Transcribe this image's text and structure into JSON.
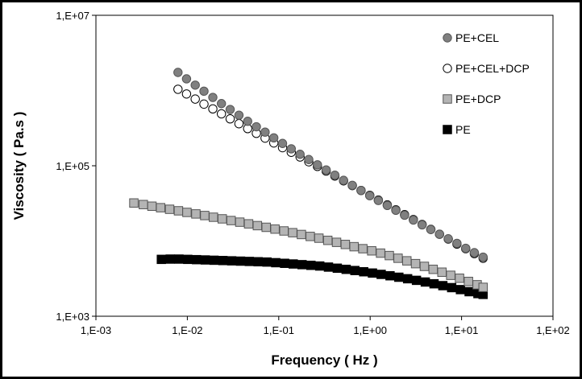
{
  "chart_data": {
    "type": "scatter",
    "xscale": "log",
    "yscale": "log",
    "xlabel": "Frequency  ( Hz )",
    "ylabel": "Viscosity  ( Pa.s )",
    "xlim": [
      0.001,
      100
    ],
    "ylim": [
      1000,
      10000000
    ],
    "grid": false,
    "legend_position": "top-right",
    "x_ticks": [
      {
        "value": 0.001,
        "label": "1,E-03"
      },
      {
        "value": 0.01,
        "label": "1,E-02"
      },
      {
        "value": 0.1,
        "label": "1,E-01"
      },
      {
        "value": 1,
        "label": "1,E+00"
      },
      {
        "value": 10,
        "label": "1,E+01"
      },
      {
        "value": 100,
        "label": "1,E+02"
      }
    ],
    "y_ticks": [
      {
        "value": 1000,
        "label": "1,E+03"
      },
      {
        "value": 100000,
        "label": "1,E+05"
      },
      {
        "value": 10000000,
        "label": "1,E+07"
      }
    ],
    "series": [
      {
        "name": "PE+CEL",
        "marker": "circle",
        "fill": "#808080",
        "stroke": "#555555",
        "points": [
          [
            0.0079,
            1740000
          ],
          [
            0.0098,
            1430000
          ],
          [
            0.0122,
            1180000
          ],
          [
            0.0152,
            980000
          ],
          [
            0.019,
            810000
          ],
          [
            0.0236,
            670000
          ],
          [
            0.0294,
            560000
          ],
          [
            0.0367,
            470000
          ],
          [
            0.0457,
            390000
          ],
          [
            0.0569,
            330000
          ],
          [
            0.0709,
            280000
          ],
          [
            0.0883,
            235000
          ],
          [
            0.11,
            198000
          ],
          [
            0.137,
            168000
          ],
          [
            0.171,
            142000
          ],
          [
            0.213,
            121000
          ],
          [
            0.265,
            103000
          ],
          [
            0.33,
            88000
          ],
          [
            0.411,
            75000
          ],
          [
            0.512,
            64000
          ],
          [
            0.638,
            55000
          ],
          [
            0.795,
            47000
          ],
          [
            0.99,
            40000
          ],
          [
            1.23,
            34500
          ],
          [
            1.54,
            29700
          ],
          [
            1.91,
            25600
          ],
          [
            2.38,
            22000
          ],
          [
            2.97,
            19000
          ],
          [
            3.7,
            16400
          ],
          [
            4.61,
            14200
          ],
          [
            5.74,
            12300
          ],
          [
            7.15,
            10700
          ],
          [
            8.9,
            9300
          ],
          [
            11.1,
            8000
          ],
          [
            13.8,
            7000
          ],
          [
            17.2,
            6100
          ]
        ]
      },
      {
        "name": "PE+CEL+DCP",
        "marker": "circle",
        "fill": "#ffffff",
        "stroke": "#000000",
        "points": [
          [
            0.0079,
            1040000
          ],
          [
            0.0098,
            900000
          ],
          [
            0.0122,
            770000
          ],
          [
            0.0152,
            660000
          ],
          [
            0.019,
            570000
          ],
          [
            0.0236,
            490000
          ],
          [
            0.0294,
            420000
          ],
          [
            0.0367,
            362000
          ],
          [
            0.0457,
            312000
          ],
          [
            0.0569,
            270000
          ],
          [
            0.0709,
            233000
          ],
          [
            0.0883,
            201000
          ],
          [
            0.11,
            174000
          ],
          [
            0.137,
            151000
          ],
          [
            0.171,
            131000
          ],
          [
            0.213,
            113000
          ],
          [
            0.265,
            98000
          ],
          [
            0.33,
            85000
          ],
          [
            0.411,
            73000
          ],
          [
            0.512,
            63000
          ],
          [
            0.638,
            54500
          ],
          [
            0.795,
            47000
          ],
          [
            0.99,
            40500
          ],
          [
            1.23,
            35000
          ],
          [
            1.54,
            30200
          ],
          [
            1.91,
            26000
          ],
          [
            2.38,
            22400
          ],
          [
            2.97,
            19300
          ],
          [
            3.7,
            16600
          ],
          [
            4.61,
            14300
          ],
          [
            5.74,
            12300
          ],
          [
            7.15,
            10600
          ],
          [
            8.9,
            9100
          ],
          [
            11.1,
            7900
          ],
          [
            13.8,
            6800
          ],
          [
            17.2,
            5900
          ]
        ]
      },
      {
        "name": "PE+DCP",
        "marker": "square",
        "fill": "#b4b4b4",
        "stroke": "#555555",
        "points": [
          [
            0.0026,
            32000
          ],
          [
            0.0033,
            30500
          ],
          [
            0.0041,
            29000
          ],
          [
            0.0051,
            27700
          ],
          [
            0.0064,
            26400
          ],
          [
            0.008,
            25200
          ],
          [
            0.0099,
            24000
          ],
          [
            0.0124,
            22900
          ],
          [
            0.0155,
            21800
          ],
          [
            0.0193,
            20700
          ],
          [
            0.0241,
            19700
          ],
          [
            0.0301,
            18700
          ],
          [
            0.0375,
            17800
          ],
          [
            0.0468,
            16900
          ],
          [
            0.0584,
            16000
          ],
          [
            0.0729,
            15200
          ],
          [
            0.091,
            14400
          ],
          [
            0.114,
            13600
          ],
          [
            0.142,
            12900
          ],
          [
            0.177,
            12200
          ],
          [
            0.221,
            11500
          ],
          [
            0.275,
            10900
          ],
          [
            0.344,
            10200
          ],
          [
            0.429,
            9600
          ],
          [
            0.535,
            9000
          ],
          [
            0.667,
            8400
          ],
          [
            0.832,
            7900
          ],
          [
            1.04,
            7400
          ],
          [
            1.3,
            6900
          ],
          [
            1.62,
            6400
          ],
          [
            2.02,
            5900
          ],
          [
            2.52,
            5450
          ],
          [
            3.14,
            5000
          ],
          [
            3.92,
            4600
          ],
          [
            4.89,
            4200
          ],
          [
            6.1,
            3850
          ],
          [
            7.61,
            3500
          ],
          [
            9.5,
            3200
          ],
          [
            11.9,
            2900
          ],
          [
            14.8,
            2620
          ],
          [
            17.2,
            2420
          ]
        ]
      },
      {
        "name": "PE",
        "marker": "square",
        "fill": "#000000",
        "stroke": "#000000",
        "points": [
          [
            0.0052,
            5700
          ],
          [
            0.0065,
            5750
          ],
          [
            0.0081,
            5750
          ],
          [
            0.0101,
            5700
          ],
          [
            0.0126,
            5650
          ],
          [
            0.0157,
            5600
          ],
          [
            0.0196,
            5550
          ],
          [
            0.0245,
            5500
          ],
          [
            0.0306,
            5450
          ],
          [
            0.0382,
            5400
          ],
          [
            0.0477,
            5350
          ],
          [
            0.0595,
            5300
          ],
          [
            0.0743,
            5250
          ],
          [
            0.0927,
            5150
          ],
          [
            0.116,
            5050
          ],
          [
            0.144,
            4950
          ],
          [
            0.18,
            4850
          ],
          [
            0.225,
            4750
          ],
          [
            0.281,
            4650
          ],
          [
            0.35,
            4500
          ],
          [
            0.437,
            4350
          ],
          [
            0.546,
            4200
          ],
          [
            0.681,
            4050
          ],
          [
            0.85,
            3900
          ],
          [
            1.06,
            3750
          ],
          [
            1.32,
            3600
          ],
          [
            1.65,
            3450
          ],
          [
            2.06,
            3300
          ],
          [
            2.57,
            3150
          ],
          [
            3.21,
            3000
          ],
          [
            4.01,
            2850
          ],
          [
            5.0,
            2700
          ],
          [
            6.24,
            2550
          ],
          [
            7.79,
            2400
          ],
          [
            9.72,
            2260
          ],
          [
            12.1,
            2120
          ],
          [
            15.1,
            2000
          ],
          [
            17.2,
            1950
          ]
        ]
      }
    ],
    "legend": [
      {
        "label": "PE+CEL",
        "marker": "circle",
        "fill": "#808080",
        "stroke": "#555555"
      },
      {
        "label": "PE+CEL+DCP",
        "marker": "circle",
        "fill": "#ffffff",
        "stroke": "#000000"
      },
      {
        "label": "PE+DCP",
        "marker": "square",
        "fill": "#b4b4b4",
        "stroke": "#555555"
      },
      {
        "label": "PE",
        "marker": "square",
        "fill": "#000000",
        "stroke": "#000000"
      }
    ]
  }
}
